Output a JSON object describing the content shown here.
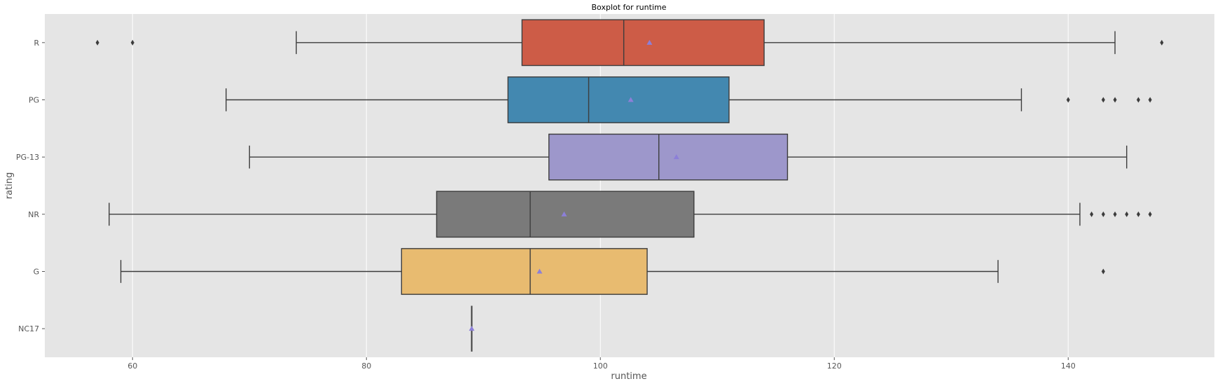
{
  "chart_data": {
    "type": "boxplot",
    "title": "Boxplot for runtime",
    "xlabel": "runtime",
    "ylabel": "rating",
    "orientation": "horizontal",
    "xlim": [
      52.5,
      152.5
    ],
    "xticks": [
      60,
      80,
      100,
      120,
      140
    ],
    "grid": true,
    "background": "#e5e5e5",
    "grid_color": "#ffffff",
    "line_color": "#3c3c3c",
    "mean_marker_color": "#8c7fd8",
    "categories": [
      "R",
      "PG",
      "PG-13",
      "NR",
      "G",
      "NC17"
    ],
    "boxes": [
      {
        "label": "R",
        "color": "#cd5c47",
        "whisker_low": 74,
        "q1": 93.3,
        "median": 102,
        "q3": 114,
        "whisker_high": 144,
        "mean": 104.2,
        "outliers": [
          57,
          60,
          148
        ]
      },
      {
        "label": "PG",
        "color": "#4388b0",
        "whisker_low": 68,
        "q1": 92.1,
        "median": 99,
        "q3": 111,
        "whisker_high": 136,
        "mean": 102.6,
        "outliers": [
          140,
          143,
          144,
          146,
          147
        ]
      },
      {
        "label": "PG-13",
        "color": "#9d97cb",
        "whisker_low": 70,
        "q1": 95.6,
        "median": 105,
        "q3": 116,
        "whisker_high": 145,
        "mean": 106.5,
        "outliers": []
      },
      {
        "label": "NR",
        "color": "#7a7a7a",
        "whisker_low": 58,
        "q1": 86,
        "median": 94,
        "q3": 108,
        "whisker_high": 141,
        "mean": 96.9,
        "outliers": [
          142,
          143,
          144,
          145,
          146,
          147
        ]
      },
      {
        "label": "G",
        "color": "#e8bb70",
        "whisker_low": 59,
        "q1": 83,
        "median": 94,
        "q3": 104,
        "whisker_high": 134,
        "mean": 94.8,
        "outliers": [
          143
        ]
      },
      {
        "label": "NC17",
        "color": "#3c3c3c",
        "whisker_low": 89,
        "q1": 89,
        "median": 89,
        "q3": 89,
        "whisker_high": 89,
        "mean": 89,
        "outliers": [],
        "range": [
          89,
          89
        ],
        "vertical_line_only": true
      }
    ]
  }
}
